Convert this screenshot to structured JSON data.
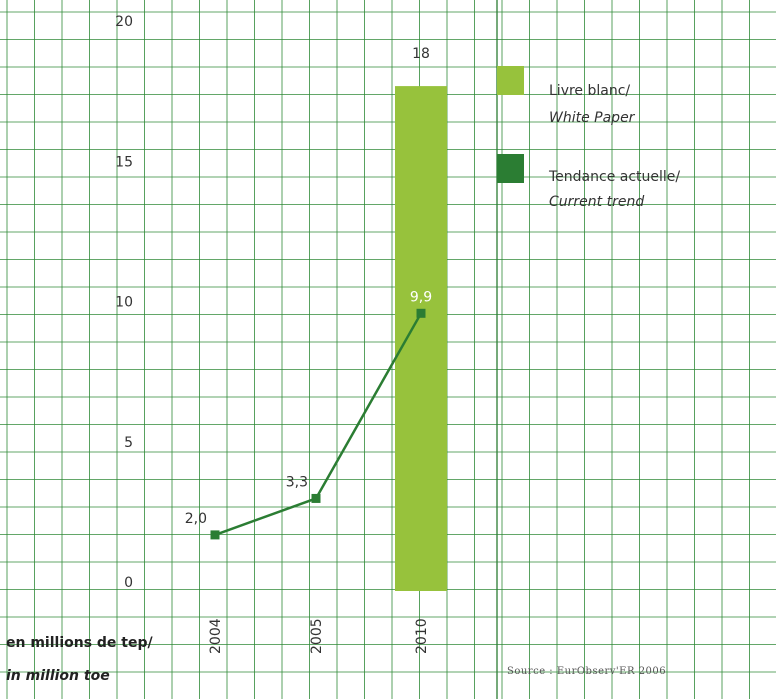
{
  "chart_data": {
    "type": "bar",
    "categories": [
      "2004",
      "2005",
      "2010"
    ],
    "ylim": [
      0,
      20
    ],
    "yticks": [
      0,
      5,
      10,
      15,
      20
    ],
    "series": [
      {
        "name_fr": "Livre blanc/",
        "name_en": "White Paper",
        "kind": "bar",
        "color": "#97c23c",
        "values": [
          null,
          null,
          18
        ],
        "value_labels": [
          "",
          "",
          "18"
        ]
      },
      {
        "name_fr": "Tendance actuelle/",
        "name_en": "Current trend",
        "kind": "line",
        "color": "#2b7d33",
        "values": [
          2.0,
          3.3,
          9.9
        ],
        "value_labels": [
          "2,0",
          "3,3",
          "9,9"
        ]
      }
    ],
    "unit_label_line1": "en millions de tep/",
    "unit_label_line2": "in million toe",
    "source": "Source : EurObserv'ER 2006",
    "grid": true,
    "legend_position": "right"
  },
  "colors": {
    "grid": "#2f8a37",
    "white_paper": "#97c23c",
    "current_trend": "#2b7d33"
  }
}
